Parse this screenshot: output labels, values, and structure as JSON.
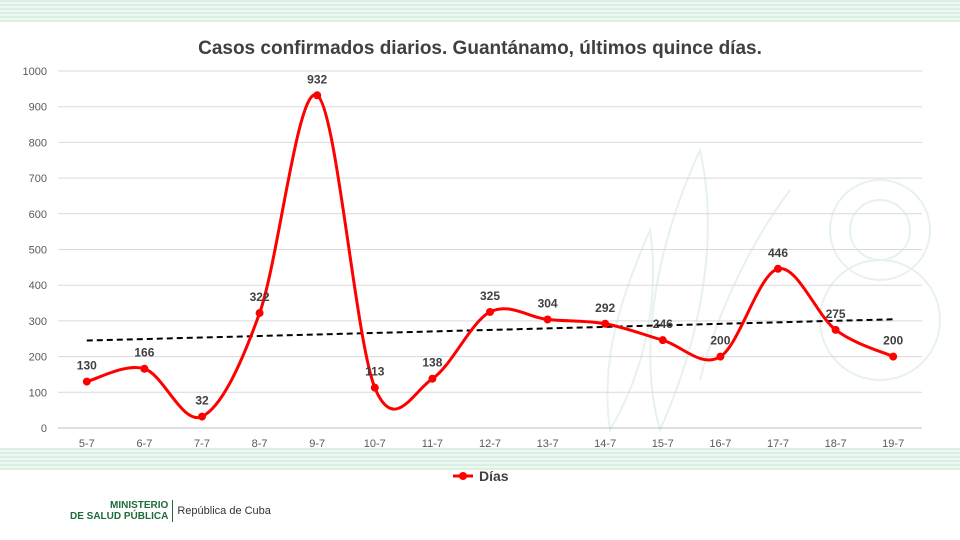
{
  "chart_data": {
    "type": "line",
    "title": "Casos confirmados diarios. Guantánamo, últimos quince días.",
    "categories": [
      "5-7",
      "6-7",
      "7-7",
      "8-7",
      "9-7",
      "10-7",
      "11-7",
      "12-7",
      "13-7",
      "14-7",
      "15-7",
      "16-7",
      "17-7",
      "18-7",
      "19-7"
    ],
    "series": [
      {
        "name": "Días",
        "values": [
          130,
          166,
          32,
          322,
          932,
          113,
          138,
          325,
          304,
          292,
          246,
          200,
          446,
          275,
          200
        ],
        "color": "#ff0000"
      }
    ],
    "trendline": {
      "style": "dashed",
      "color": "#000000",
      "type": "linear"
    },
    "ylim": [
      0,
      1000
    ],
    "yticks": [
      0,
      100,
      200,
      300,
      400,
      500,
      600,
      700,
      800,
      900,
      1000
    ],
    "grid": true,
    "legend": "bottom",
    "xlabel": "",
    "ylabel": ""
  },
  "footer": {
    "ministry_line1": "MINISTERIO",
    "ministry_line2": "DE SALUD PÚBLICA",
    "country": "República de Cuba"
  },
  "colors": {
    "series": "#ff0000",
    "grid": "#d9d9d9",
    "text": "#404040",
    "band": "#dcefe3"
  }
}
